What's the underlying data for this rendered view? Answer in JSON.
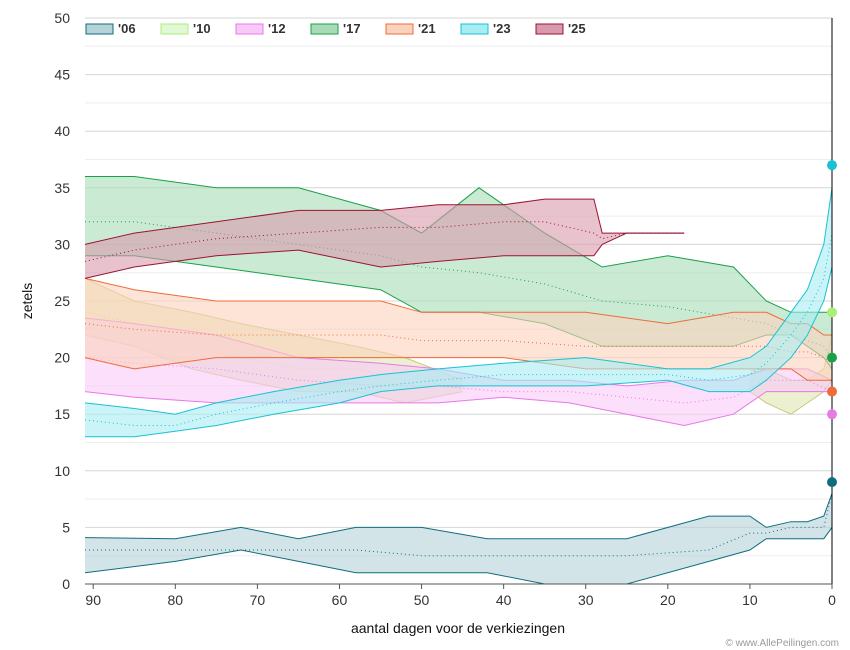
{
  "chart_data": {
    "type": "area",
    "title": "",
    "xlabel": "aantal dagen voor de verkiezingen",
    "ylabel": "zetels",
    "xlim": [
      91,
      0
    ],
    "ylim": [
      0,
      50
    ],
    "x_ticks": [
      90,
      80,
      70,
      60,
      50,
      40,
      30,
      20,
      10,
      0
    ],
    "y_ticks": [
      0,
      5,
      10,
      15,
      20,
      25,
      30,
      35,
      40,
      45,
      50
    ],
    "grid": true,
    "legend_position": "top-left",
    "credit": "© www.AllePeilingen.com",
    "series": [
      {
        "name": "'06",
        "color": "#0e6e7e",
        "fill": "#b4d2d8",
        "x": [
          91,
          80,
          72,
          65,
          58,
          50,
          42,
          35,
          25,
          15,
          10,
          8,
          5,
          3,
          1,
          0
        ],
        "low": [
          1,
          2,
          3,
          2,
          1,
          1,
          1,
          0,
          0,
          2,
          3,
          4,
          4,
          4,
          4,
          5
        ],
        "high": [
          4.1,
          4,
          5,
          4,
          5,
          5,
          4,
          4,
          4,
          6,
          6,
          5,
          5.5,
          5.5,
          6,
          8
        ],
        "mid": [
          3,
          3,
          3,
          3,
          3,
          2.5,
          2.5,
          2.5,
          2.5,
          3,
          4.5,
          4.5,
          5,
          5,
          5,
          8
        ],
        "final": 9
      },
      {
        "name": "'10",
        "color": "#c9c97a",
        "fill": "#dfe6b0",
        "legend_color": "#a8f07a",
        "x": [
          91,
          85,
          78,
          72,
          65,
          58,
          52,
          45
        ],
        "low": [
          22,
          21,
          19,
          18,
          17,
          17,
          16,
          17
        ],
        "high": [
          27,
          25,
          24,
          23,
          22,
          21,
          20,
          18
        ],
        "mid": [
          24,
          23,
          21,
          20,
          19,
          19,
          18,
          17.5
        ],
        "x2": [
          10,
          8,
          5,
          3,
          1,
          0
        ],
        "low2": [
          17,
          16,
          15,
          16,
          17,
          18
        ],
        "high2": [
          19,
          19,
          18,
          18,
          19,
          22
        ],
        "final": 24
      },
      {
        "name": "'12",
        "color": "#e879e8",
        "fill": "#f8c9f8",
        "x": [
          91,
          85,
          75,
          65,
          55,
          48,
          40,
          32,
          25,
          18,
          12,
          8,
          5,
          3,
          0
        ],
        "low": [
          17,
          16.5,
          16,
          16,
          16,
          16,
          16.5,
          16,
          15,
          14,
          15,
          17,
          17,
          17,
          17
        ],
        "high": [
          23.5,
          23,
          22,
          20,
          19.5,
          19,
          18,
          18,
          17.5,
          18,
          18,
          19,
          19,
          19,
          18
        ],
        "mid": [
          20,
          19.5,
          19,
          18,
          17.5,
          17.5,
          17,
          17,
          16.5,
          16,
          16.5,
          18,
          18,
          18,
          17
        ],
        "final": 15
      },
      {
        "name": "'17",
        "color": "#1aa04a",
        "fill": "#a8dcb8",
        "x": [
          91,
          85,
          75,
          65,
          55,
          50,
          43,
          35,
          28,
          20,
          12,
          8,
          5,
          3,
          1,
          0
        ],
        "low": [
          29,
          29,
          28,
          27,
          26,
          24,
          24,
          23,
          21,
          21,
          21,
          22,
          22,
          21,
          20,
          19
        ],
        "high": [
          36,
          36,
          35,
          35,
          33,
          31,
          35,
          31,
          28,
          29,
          28,
          25,
          24,
          24,
          24,
          24
        ],
        "mid": [
          32,
          32,
          31,
          30,
          29,
          28,
          27.5,
          26.5,
          25,
          24.5,
          23.5,
          23,
          22,
          21.5,
          21,
          20
        ],
        "final": 20
      },
      {
        "name": "'21",
        "color": "#ee6b3a",
        "fill": "#fbd2bc",
        "x": [
          91,
          85,
          75,
          65,
          55,
          50,
          40,
          30,
          20,
          12,
          8,
          5,
          3,
          1,
          0
        ],
        "low": [
          20,
          19,
          20,
          20,
          20,
          20,
          20,
          19,
          19,
          19,
          19,
          19,
          18,
          18,
          18
        ],
        "high": [
          27,
          26,
          25,
          25,
          25,
          24,
          24,
          24,
          23,
          24,
          24,
          23,
          23,
          22,
          22
        ],
        "mid": [
          23,
          22.5,
          22,
          22,
          22,
          21.5,
          21.5,
          21,
          21,
          21,
          21,
          20.5,
          20.5,
          20,
          19.5
        ],
        "final": 17
      },
      {
        "name": "'23",
        "color": "#19c2d2",
        "fill": "#a6ecf2",
        "x": [
          91,
          85,
          80,
          75,
          68,
          60,
          55,
          48,
          40,
          30,
          20,
          15,
          10,
          8,
          5,
          3,
          1,
          0
        ],
        "low": [
          13,
          13,
          13.5,
          14,
          15,
          16,
          17,
          17.5,
          17.5,
          17.5,
          18,
          17,
          17,
          18,
          20,
          22,
          25,
          28
        ],
        "high": [
          16,
          15.5,
          15,
          16,
          17,
          18,
          18.5,
          19,
          19.5,
          20,
          19,
          19,
          20,
          21,
          24,
          26,
          30,
          35
        ],
        "mid": [
          14.5,
          14,
          14,
          15,
          16,
          17,
          17.5,
          18,
          18.5,
          18.5,
          18.5,
          18,
          18.5,
          19.5,
          22,
          24,
          27,
          31
        ],
        "final": 37
      },
      {
        "name": "'25",
        "color": "#9a1434",
        "fill": "#d89aac",
        "x": [
          91,
          85,
          75,
          65,
          55,
          48,
          40,
          35,
          29,
          28,
          25,
          20,
          18
        ],
        "low": [
          27,
          28,
          29,
          29.5,
          28,
          28.5,
          29,
          29,
          29,
          30,
          31,
          31,
          31
        ],
        "high": [
          30,
          31,
          32,
          33,
          33,
          33.5,
          33.5,
          34,
          34,
          31,
          31,
          31,
          31
        ],
        "mid": [
          28.5,
          29.5,
          30.5,
          31,
          31.5,
          31.5,
          32,
          32,
          31,
          30.5,
          31,
          31,
          31
        ],
        "final": null
      }
    ]
  }
}
